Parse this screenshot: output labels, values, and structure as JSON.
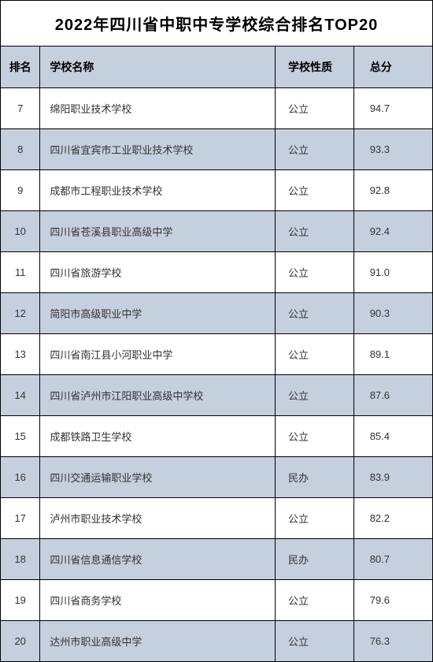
{
  "title": "2022年四川省中职中专学校综合排名TOP20",
  "table": {
    "columns": [
      "排名",
      "学校名称",
      "学校性质",
      "总分"
    ],
    "rows": [
      {
        "rank": "7",
        "name": "绵阳职业技术学校",
        "type": "公立",
        "score": "94.7"
      },
      {
        "rank": "8",
        "name": "四川省宜宾市工业职业技术学校",
        "type": "公立",
        "score": "93.3"
      },
      {
        "rank": "9",
        "name": "成都市工程职业技术学校",
        "type": "公立",
        "score": "92.8"
      },
      {
        "rank": "10",
        "name": "四川省苍溪县职业高级中学",
        "type": "公立",
        "score": "92.4"
      },
      {
        "rank": "11",
        "name": "四川省旅游学校",
        "type": "公立",
        "score": "91.0"
      },
      {
        "rank": "12",
        "name": "简阳市高级职业中学",
        "type": "公立",
        "score": "90.3"
      },
      {
        "rank": "13",
        "name": "四川省南江县小河职业中学",
        "type": "公立",
        "score": "89.1"
      },
      {
        "rank": "14",
        "name": "四川省泸州市江阳职业高级中学校",
        "type": "公立",
        "score": "87.6"
      },
      {
        "rank": "15",
        "name": "成都铁路卫生学校",
        "type": "公立",
        "score": "85.4"
      },
      {
        "rank": "16",
        "name": "四川交通运输职业学校",
        "type": "民办",
        "score": "83.9"
      },
      {
        "rank": "17",
        "name": "泸州市职业技术学校",
        "type": "公立",
        "score": "82.2"
      },
      {
        "rank": "18",
        "name": "四川省信息通信学校",
        "type": "民办",
        "score": "80.7"
      },
      {
        "rank": "19",
        "name": "四川省商务学校",
        "type": "公立",
        "score": "79.6"
      },
      {
        "rank": "20",
        "name": "达州市职业高级中学",
        "type": "公立",
        "score": "76.3"
      }
    ]
  },
  "styles": {
    "header_bg": "#c5d0de",
    "row_even_bg": "#c5d0de",
    "row_odd_bg": "#ffffff",
    "border_color": "#000000",
    "title_fontsize": 20,
    "header_fontsize": 14,
    "cell_fontsize": 13
  }
}
